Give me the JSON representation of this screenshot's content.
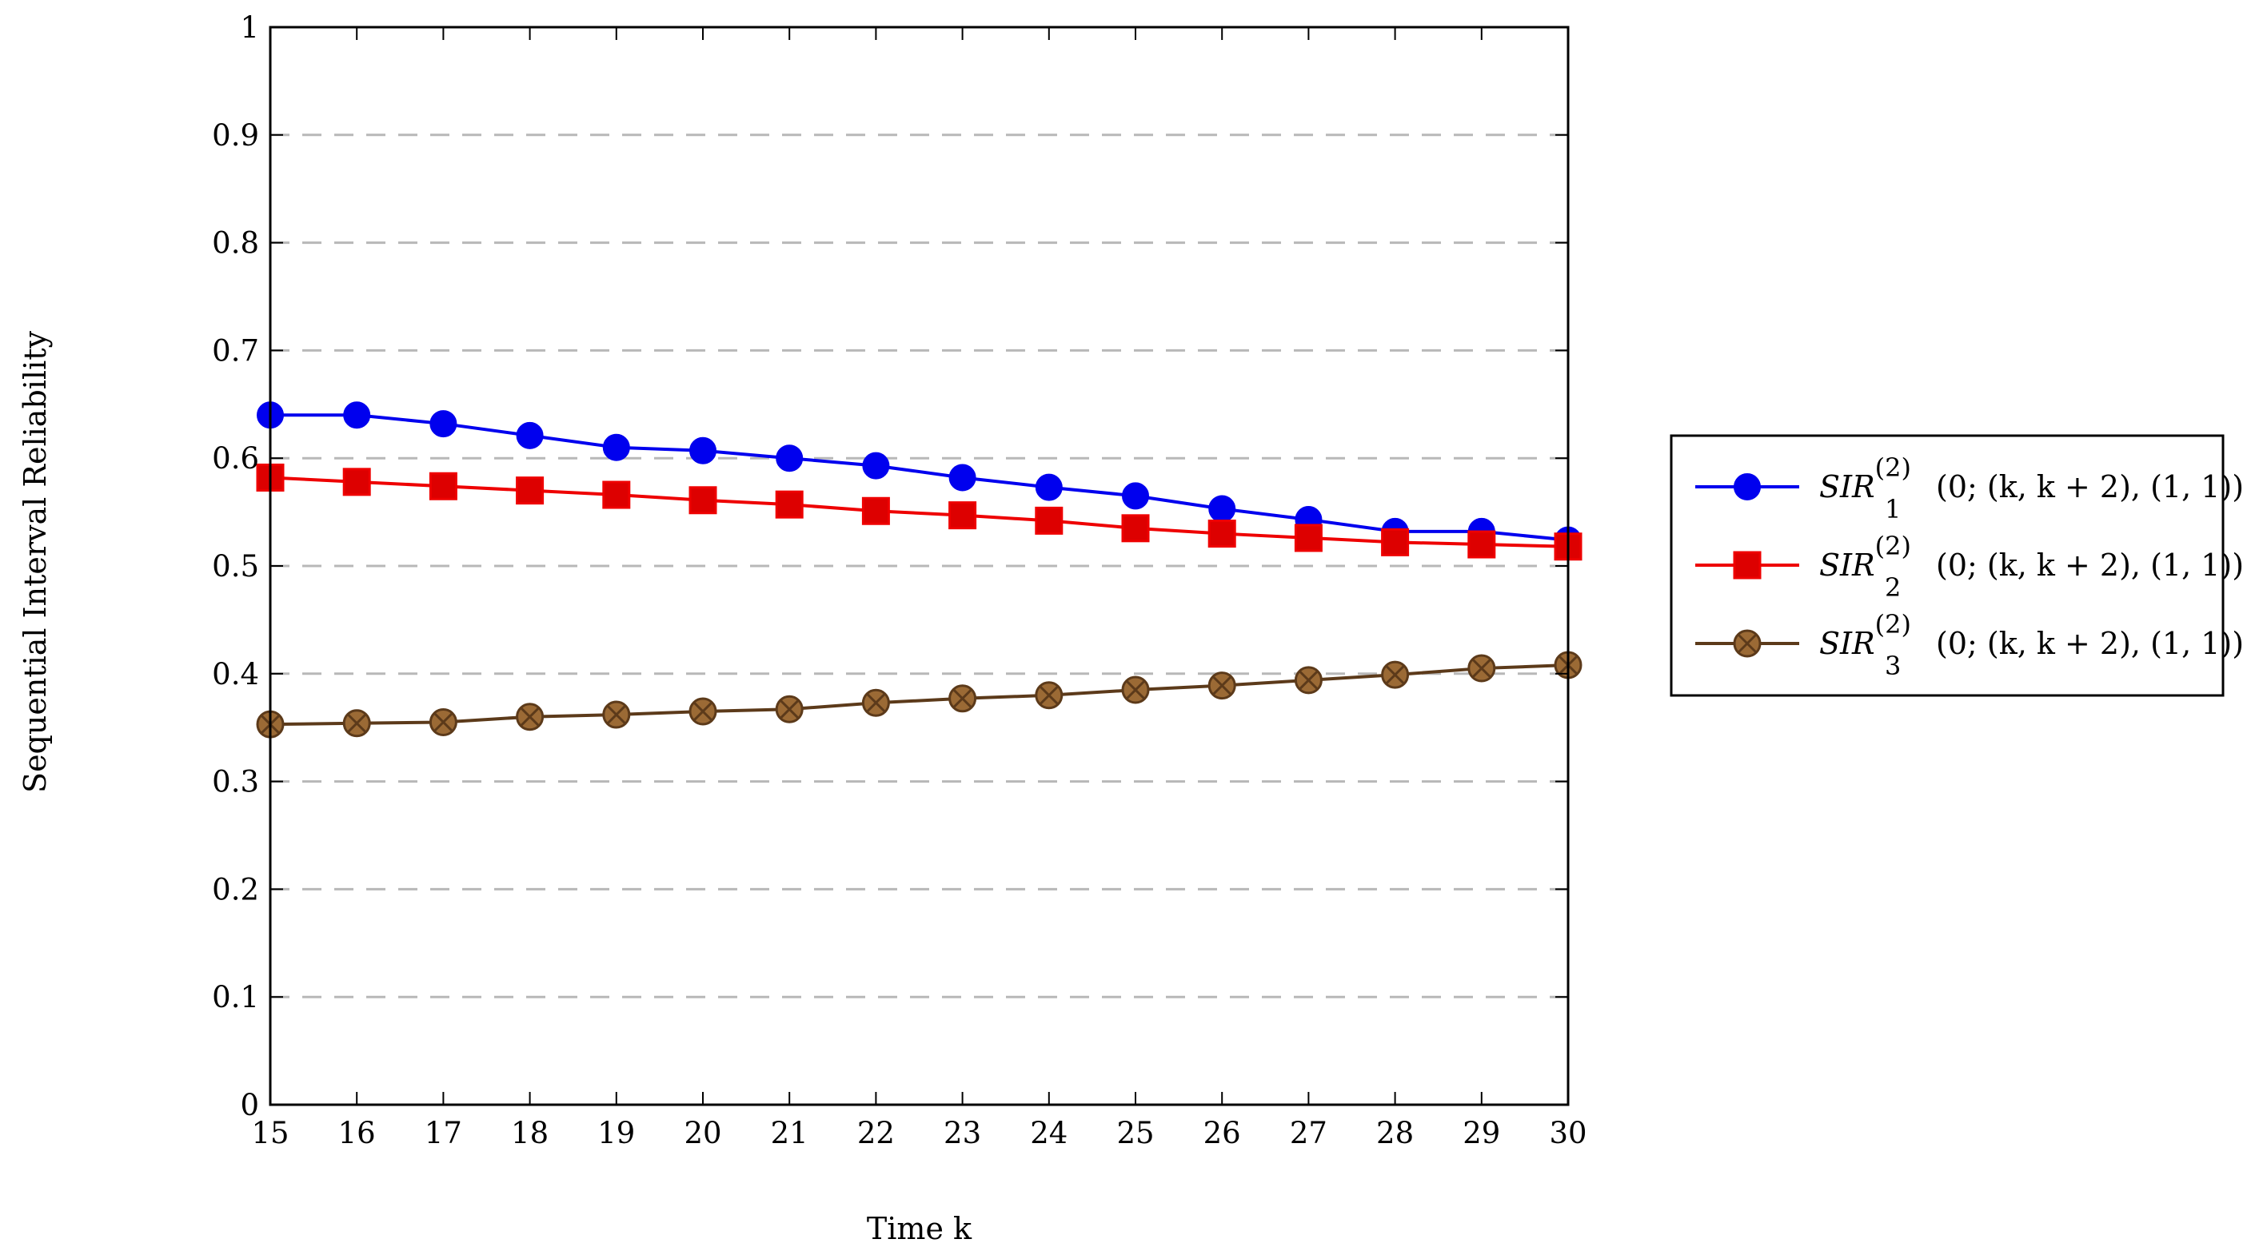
{
  "chart_data": {
    "type": "line",
    "title": "",
    "xlabel": "Time k",
    "ylabel": "Sequential Interval Reliability",
    "xlim": [
      15,
      30
    ],
    "ylim": [
      0,
      1
    ],
    "x": [
      15,
      16,
      17,
      18,
      19,
      20,
      21,
      22,
      23,
      24,
      25,
      26,
      27,
      28,
      29,
      30
    ],
    "x_ticks": [
      "15",
      "16",
      "17",
      "18",
      "19",
      "20",
      "21",
      "22",
      "23",
      "24",
      "25",
      "26",
      "27",
      "28",
      "29",
      "30"
    ],
    "y_ticks": [
      "0",
      "0.1",
      "0.2",
      "0.3",
      "0.4",
      "0.5",
      "0.6",
      "0.7",
      "0.8",
      "0.9",
      "1"
    ],
    "grid": "horizontal dashed",
    "legend_position": "right, outside plot",
    "series": [
      {
        "name": "SIR_1^(2)(0;(k,k+2),(1,1))",
        "label_parts": {
          "main": "SIR",
          "sub": "1",
          "sup": "(2)",
          "args": "(0; (k, k + 2), (1, 1))"
        },
        "color": "#0000ee",
        "marker": "circle",
        "values": [
          0.64,
          0.64,
          0.632,
          0.621,
          0.61,
          0.607,
          0.6,
          0.593,
          0.582,
          0.573,
          0.565,
          0.553,
          0.543,
          0.532,
          0.532,
          0.524
        ]
      },
      {
        "name": "SIR_2^(2)(0;(k,k+2),(1,1))",
        "label_parts": {
          "main": "SIR",
          "sub": "2",
          "sup": "(2)",
          "args": "(0; (k, k + 2), (1, 1))"
        },
        "color": "#ee0000",
        "marker": "square",
        "values": [
          0.582,
          0.578,
          0.574,
          0.57,
          0.566,
          0.561,
          0.557,
          0.551,
          0.547,
          0.542,
          0.535,
          0.53,
          0.526,
          0.522,
          0.52,
          0.518
        ]
      },
      {
        "name": "SIR_3^(2)(0;(k,k+2),(1,1))",
        "label_parts": {
          "main": "SIR",
          "sub": "3",
          "sup": "(2)",
          "args": "(0; (k, k + 2), (1, 1))"
        },
        "color": "#5c3a1a",
        "fill": "#9b6a35",
        "marker": "otimes",
        "values": [
          0.353,
          0.354,
          0.355,
          0.36,
          0.362,
          0.365,
          0.367,
          0.373,
          0.377,
          0.38,
          0.385,
          0.389,
          0.394,
          0.399,
          0.405,
          0.408
        ]
      }
    ]
  }
}
